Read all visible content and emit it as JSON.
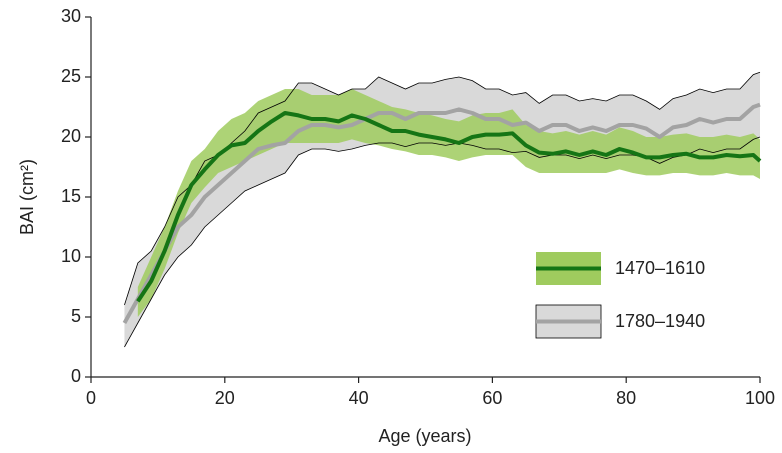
{
  "chart_data": {
    "type": "band-line",
    "xlabel": "Age (years)",
    "ylabel": "BAI (cm²)",
    "xlim": [
      0,
      100
    ],
    "xticks": [
      0,
      20,
      40,
      60,
      80,
      100
    ],
    "ylim": [
      0,
      30
    ],
    "yticks": [
      0,
      5,
      10,
      15,
      20,
      25,
      30
    ],
    "legend": "right",
    "x": [
      5,
      7,
      9,
      11,
      13,
      15,
      17,
      19,
      21,
      23,
      25,
      27,
      29,
      31,
      33,
      35,
      37,
      39,
      41,
      43,
      45,
      47,
      49,
      51,
      53,
      55,
      57,
      59,
      61,
      63,
      65,
      67,
      69,
      71,
      73,
      75,
      77,
      79,
      81,
      83,
      85,
      87,
      89,
      91,
      93,
      95,
      97,
      99,
      100
    ],
    "series": [
      {
        "name": "1780–1940",
        "color": "#a3a3a3",
        "band_color": "#d9d9d9",
        "band_edge": "#000000",
        "values": [
          4.5,
          6.5,
          8.5,
          10.5,
          12.5,
          13.5,
          15,
          16,
          17,
          18,
          19,
          19.3,
          19.5,
          20.5,
          21,
          21,
          20.8,
          21,
          21.5,
          22,
          22,
          21.5,
          22,
          22,
          22,
          22.3,
          22,
          21.5,
          21.5,
          21,
          21.2,
          20.5,
          21,
          21,
          20.5,
          20.8,
          20.5,
          21,
          21,
          20.7,
          20,
          20.8,
          21,
          21.5,
          21.2,
          21.5,
          21.5,
          22.5,
          22.7
        ],
        "lower": [
          2.5,
          4.5,
          6.5,
          8.5,
          10,
          11,
          12.5,
          13.5,
          14.5,
          15.5,
          16,
          16.5,
          17,
          18.5,
          19,
          19,
          18.8,
          19,
          19.3,
          19.5,
          19.5,
          19.2,
          19.5,
          19.5,
          19.3,
          19.5,
          19.3,
          19,
          19,
          18.7,
          18.8,
          18.3,
          18.5,
          18.5,
          18.2,
          18.5,
          18.2,
          18.5,
          18.5,
          18.3,
          17.8,
          18.3,
          18.5,
          19,
          18.7,
          19,
          19,
          19.8,
          20
        ],
        "upper": [
          6,
          9.5,
          10.5,
          12.5,
          15,
          16,
          18,
          18.5,
          19.5,
          20.5,
          22,
          22.5,
          23,
          24.5,
          24.5,
          24,
          23.5,
          24,
          24,
          25,
          24.5,
          24,
          24.5,
          24.5,
          24.8,
          25,
          24.7,
          24,
          24,
          23.5,
          23.7,
          22.8,
          23.5,
          23.5,
          23,
          23.2,
          23,
          23.5,
          23.5,
          23,
          22.3,
          23.2,
          23.5,
          24,
          23.7,
          24,
          24,
          25.2,
          25.4
        ]
      },
      {
        "name": "1470–1610",
        "color": "#157515",
        "band_color": "#9fcb5e",
        "values": [
          null,
          6.3,
          8,
          10.5,
          13.5,
          16,
          17.3,
          18.5,
          19.3,
          19.5,
          20.5,
          21.3,
          22,
          21.8,
          21.5,
          21.5,
          21.3,
          21.8,
          21.5,
          21,
          20.5,
          20.5,
          20.2,
          20,
          19.8,
          19.5,
          20,
          20.2,
          20.2,
          20.3,
          19.3,
          18.7,
          18.6,
          18.8,
          18.5,
          18.8,
          18.5,
          19,
          18.7,
          18.3,
          18.3,
          18.5,
          18.6,
          18.3,
          18.3,
          18.5,
          18.4,
          18.5,
          18
        ],
        "lower": [
          null,
          5,
          6.5,
          9,
          12,
          14.5,
          15.8,
          17,
          17.5,
          18,
          18.5,
          19,
          19.5,
          19.5,
          19.5,
          19.5,
          19.5,
          19.8,
          19.5,
          19.3,
          19,
          18.8,
          18.5,
          18.5,
          18.3,
          18,
          18.3,
          18.5,
          18.5,
          18.5,
          17.5,
          17,
          17,
          17,
          17,
          17,
          17,
          17.3,
          17,
          16.8,
          16.8,
          17,
          17,
          16.8,
          16.8,
          17,
          16.8,
          16.8,
          16.5
        ],
        "upper": [
          null,
          7.5,
          10,
          12.5,
          15.5,
          18,
          19,
          20.5,
          21.5,
          22,
          23,
          23.5,
          24,
          24,
          23.5,
          23.5,
          23.5,
          24,
          23.5,
          23,
          22.5,
          22.3,
          22,
          21.8,
          21.5,
          21.3,
          21.8,
          22,
          22,
          22.3,
          21,
          20.5,
          20.3,
          20.5,
          20.2,
          20.5,
          20.2,
          20.8,
          20.5,
          20,
          20,
          20.2,
          20.3,
          20,
          20,
          20.2,
          20,
          20.3,
          19.8
        ]
      }
    ]
  }
}
